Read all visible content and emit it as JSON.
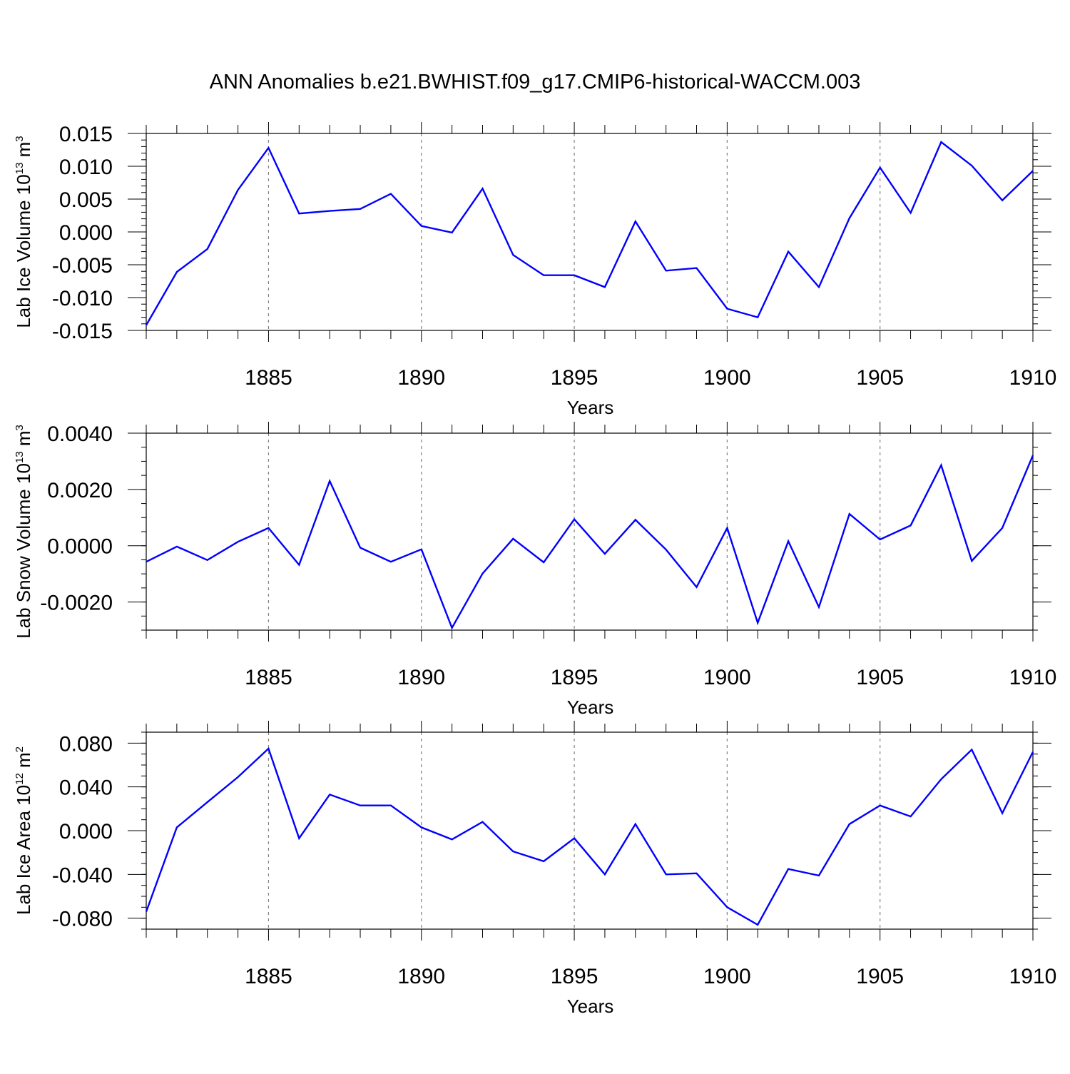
{
  "title": "ANN Anomalies b.e21.BWHIST.f09_g17.CMIP6-historical-WACCM.003",
  "colors": {
    "line": "#0000ff",
    "axis": "#000000",
    "grid": "#808080"
  },
  "chart_data": [
    {
      "type": "line",
      "ylabel": {
        "text": "Lab Ice Volume 10",
        "sup1": "13",
        "unit": " m",
        "sup2": "3"
      },
      "xlabel": "Years",
      "xlim": [
        1881,
        1910
      ],
      "ylim": [
        -0.015,
        0.015
      ],
      "xticks": [
        1885,
        1890,
        1895,
        1900,
        1905,
        1910
      ],
      "xtick_labels": [
        "1885",
        "1890",
        "1895",
        "1900",
        "1905",
        "1910"
      ],
      "yticks": [
        -0.015,
        -0.01,
        -0.005,
        0.0,
        0.005,
        0.01,
        0.015
      ],
      "ytick_labels": [
        "-0.015",
        "-0.010",
        "-0.005",
        "0.000",
        "0.005",
        "0.010",
        "0.015"
      ],
      "yminor": 0.001,
      "x": [
        1881,
        1882,
        1883,
        1884,
        1885,
        1886,
        1887,
        1888,
        1889,
        1890,
        1891,
        1892,
        1893,
        1894,
        1895,
        1896,
        1897,
        1898,
        1899,
        1900,
        1901,
        1902,
        1903,
        1904,
        1905,
        1906,
        1907,
        1908,
        1909,
        1910
      ],
      "values": [
        -0.0142,
        -0.0061,
        -0.0026,
        0.0064,
        0.0128,
        0.0028,
        0.0032,
        0.0035,
        0.0058,
        0.0009,
        -0.0001,
        0.0066,
        -0.0035,
        -0.0066,
        -0.0066,
        -0.0084,
        0.0016,
        -0.0059,
        -0.0055,
        -0.0117,
        -0.013,
        -0.003,
        -0.0084,
        0.0021,
        0.0098,
        0.0029,
        0.0137,
        0.0101,
        0.0048,
        0.0093
      ]
    },
    {
      "type": "line",
      "ylabel": {
        "text": "Lab Snow Volume 10",
        "sup1": "13",
        "unit": " m",
        "sup2": "3"
      },
      "xlabel": "Years",
      "xlim": [
        1881,
        1910
      ],
      "ylim": [
        -0.003,
        0.004
      ],
      "xticks": [
        1885,
        1890,
        1895,
        1900,
        1905,
        1910
      ],
      "xtick_labels": [
        "1885",
        "1890",
        "1895",
        "1900",
        "1905",
        "1910"
      ],
      "yticks": [
        -0.002,
        0.0,
        0.002,
        0.004
      ],
      "ytick_labels": [
        "-0.0020",
        "0.0000",
        "0.0020",
        "0.0040"
      ],
      "yminor": 0.0005,
      "x": [
        1881,
        1882,
        1883,
        1884,
        1885,
        1886,
        1887,
        1888,
        1889,
        1890,
        1891,
        1892,
        1893,
        1894,
        1895,
        1896,
        1897,
        1898,
        1899,
        1900,
        1901,
        1902,
        1903,
        1904,
        1905,
        1906,
        1907,
        1908,
        1909,
        1910
      ],
      "values": [
        -0.00057,
        -3e-05,
        -0.00051,
        0.00014,
        0.00063,
        -0.00068,
        0.0023,
        -7e-05,
        -0.00057,
        -0.00013,
        -0.00292,
        -0.00099,
        0.00025,
        -0.00059,
        0.00094,
        -0.00029,
        0.00092,
        -0.00014,
        -0.00147,
        0.00063,
        -0.00274,
        0.00016,
        -0.00218,
        0.00113,
        0.00022,
        0.00072,
        0.00286,
        -0.00054,
        0.00063,
        0.00321
      ]
    },
    {
      "type": "line",
      "ylabel": {
        "text": "Lab Ice Area 10",
        "sup1": "12",
        "unit": " m",
        "sup2": "2"
      },
      "xlabel": "Years",
      "xlim": [
        1881,
        1910
      ],
      "ylim": [
        -0.09,
        0.09
      ],
      "xticks": [
        1885,
        1890,
        1895,
        1900,
        1905,
        1910
      ],
      "xtick_labels": [
        "1885",
        "1890",
        "1895",
        "1900",
        "1905",
        "1910"
      ],
      "yticks": [
        -0.08,
        -0.04,
        0.0,
        0.04,
        0.08
      ],
      "ytick_labels": [
        "-0.080",
        "-0.040",
        "0.000",
        "0.040",
        "0.080"
      ],
      "yminor": 0.01,
      "x": [
        1881,
        1882,
        1883,
        1884,
        1885,
        1886,
        1887,
        1888,
        1889,
        1890,
        1891,
        1892,
        1893,
        1894,
        1895,
        1896,
        1897,
        1898,
        1899,
        1900,
        1901,
        1902,
        1903,
        1904,
        1905,
        1906,
        1907,
        1908,
        1909,
        1910
      ],
      "values": [
        -0.074,
        0.003,
        0.026,
        0.049,
        0.075,
        -0.007,
        0.033,
        0.023,
        0.023,
        0.003,
        -0.008,
        0.008,
        -0.019,
        -0.028,
        -0.007,
        -0.04,
        0.006,
        -0.04,
        -0.039,
        -0.07,
        -0.086,
        -0.035,
        -0.041,
        0.006,
        0.023,
        0.013,
        0.047,
        0.074,
        0.016,
        0.072
      ]
    }
  ]
}
